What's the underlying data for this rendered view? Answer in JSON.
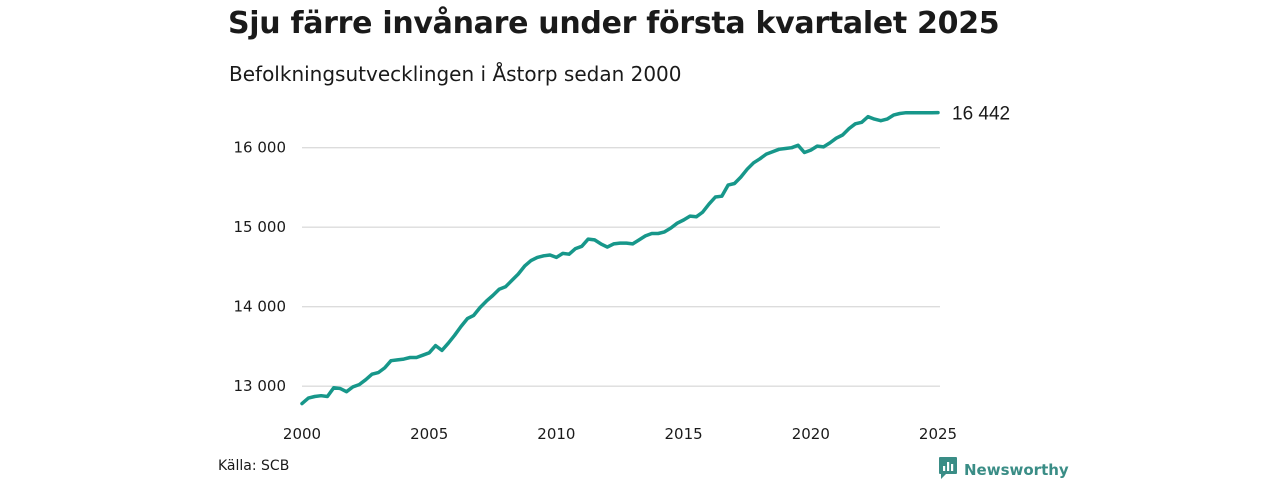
{
  "header": {
    "title": "Sju färre invånare under första kvartalet 2025",
    "subtitle": "Befolkningsutvecklingen i Åstorp sedan 2000"
  },
  "footer": {
    "source": "Källa: SCB",
    "brand": "Newsworthy"
  },
  "colors": {
    "line": "#17978a",
    "grid": "#dcdcdc",
    "brand": "#3a8d86"
  },
  "icons": {
    "brand_logo": "newsworthy-logo-icon"
  },
  "chart_data": {
    "type": "line",
    "title": "Sju färre invånare under första kvartalet 2025",
    "subtitle": "Befolkningsutvecklingen i Åstorp sedan 2000",
    "xlabel": "",
    "ylabel": "",
    "xlim": [
      2000,
      2025
    ],
    "ylim": [
      12700,
      16600
    ],
    "grid": true,
    "legend": "none",
    "x_ticks": [
      2000,
      2005,
      2010,
      2015,
      2020,
      2025
    ],
    "x_tick_labels": [
      "2000",
      "2005",
      "2010",
      "2015",
      "2020",
      "2025"
    ],
    "y_ticks": [
      13000,
      14000,
      15000,
      16000
    ],
    "y_tick_labels": [
      "13 000",
      "14 000",
      "15 000",
      "16 000"
    ],
    "end_label": "16 442",
    "series": [
      {
        "x": [
          2000,
          2000.25,
          2000.5,
          2000.75,
          2001,
          2001.25,
          2001.5,
          2001.75,
          2002,
          2002.25,
          2002.5,
          2002.75,
          2003,
          2003.25,
          2003.5,
          2003.75,
          2004,
          2004.25,
          2004.5,
          2004.75,
          2005,
          2005.25,
          2005.5,
          2005.75,
          2006,
          2006.25,
          2006.5,
          2006.75,
          2007,
          2007.25,
          2007.5,
          2007.75,
          2008,
          2008.25,
          2008.5,
          2008.75,
          2009,
          2009.25,
          2009.5,
          2009.75,
          2010,
          2010.25,
          2010.5,
          2010.75,
          2011,
          2011.25,
          2011.5,
          2011.75,
          2012,
          2012.25,
          2012.5,
          2012.75,
          2013,
          2013.25,
          2013.5,
          2013.75,
          2014,
          2014.25,
          2014.5,
          2014.75,
          2015,
          2015.25,
          2015.5,
          2015.75,
          2016,
          2016.25,
          2016.5,
          2016.75,
          2017,
          2017.25,
          2017.5,
          2017.75,
          2018,
          2018.25,
          2018.5,
          2018.75,
          2019,
          2019.25,
          2019.5,
          2019.75,
          2020,
          2020.25,
          2020.5,
          2020.75,
          2021,
          2021.25,
          2021.5,
          2021.75,
          2022,
          2022.25,
          2022.5,
          2022.75,
          2023,
          2023.25,
          2023.5,
          2023.75,
          2024,
          2024.25,
          2024.5,
          2024.75,
          2025
        ],
        "values": [
          12780,
          12850,
          12870,
          12880,
          12870,
          12980,
          12970,
          12930,
          12990,
          13020,
          13080,
          13150,
          13170,
          13230,
          13320,
          13330,
          13340,
          13360,
          13360,
          13390,
          13420,
          13510,
          13450,
          13540,
          13640,
          13750,
          13850,
          13890,
          13990,
          14070,
          14140,
          14220,
          14250,
          14330,
          14410,
          14510,
          14580,
          14620,
          14640,
          14650,
          14620,
          14670,
          14660,
          14730,
          14760,
          14850,
          14840,
          14790,
          14750,
          14790,
          14800,
          14800,
          14790,
          14840,
          14890,
          14920,
          14920,
          14940,
          14990,
          15050,
          15090,
          15140,
          15130,
          15190,
          15290,
          15380,
          15390,
          15530,
          15550,
          15630,
          15730,
          15810,
          15860,
          15920,
          15950,
          15980,
          15990,
          16000,
          16030,
          15940,
          15970,
          16020,
          16010,
          16060,
          16120,
          16160,
          16240,
          16300,
          16320,
          16390,
          16360,
          16340,
          16360,
          16410,
          16430,
          16440,
          16440,
          16440,
          16440,
          16440,
          16442
        ]
      }
    ]
  }
}
